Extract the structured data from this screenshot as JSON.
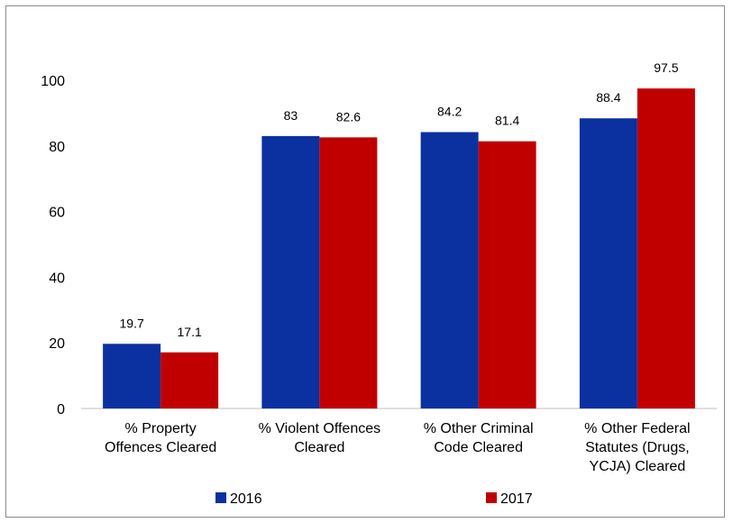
{
  "chart_data": {
    "type": "bar",
    "title": "",
    "xlabel": "",
    "ylabel": "",
    "ylim": [
      0,
      100
    ],
    "yticks": [
      0,
      20,
      40,
      60,
      80,
      100
    ],
    "grid": false,
    "legend_position": "bottom",
    "categories": [
      [
        "% Property",
        "Offences Cleared"
      ],
      [
        "% Violent Offences",
        "Cleared"
      ],
      [
        "% Other Criminal",
        "Code Cleared"
      ],
      [
        "% Other Federal",
        "Statutes (Drugs,",
        "YCJA) Cleared"
      ]
    ],
    "series": [
      {
        "name": "2016",
        "color": "#0b30a0",
        "values": [
          19.7,
          83,
          84.2,
          88.4
        ]
      },
      {
        "name": "2017",
        "color": "#c00000",
        "values": [
          17.1,
          82.6,
          81.4,
          97.5
        ]
      }
    ]
  }
}
